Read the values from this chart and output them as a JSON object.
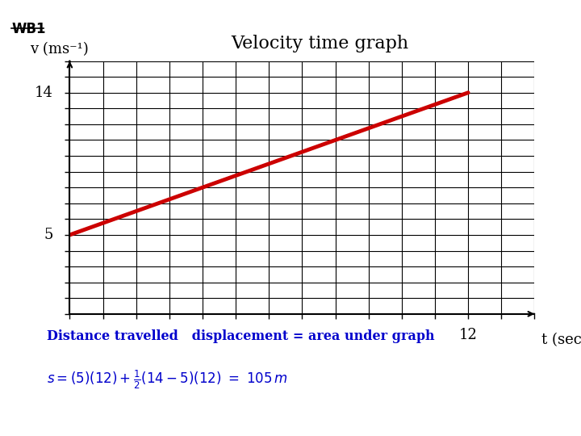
{
  "title": "Velocity time graph",
  "wb1_label": "WB1",
  "xlabel": "t (secs)",
  "ylabel": "v (ms⁻¹)",
  "line_x": [
    0,
    12
  ],
  "line_y": [
    5,
    14
  ],
  "line_color": "#cc0000",
  "line_width": 3.5,
  "xlim": [
    0,
    14
  ],
  "ylim": [
    0,
    16
  ],
  "x_label_val": 12,
  "y_label_vals": [
    5,
    14
  ],
  "bg_color": "#ffffff",
  "grid_color": "#000000",
  "annotation_color": "#0000cc",
  "formula_line1": "Distance travelled   displacement = area under graph",
  "title_fontsize": 16,
  "axis_label_fontsize": 13,
  "tick_label_fontsize": 13
}
